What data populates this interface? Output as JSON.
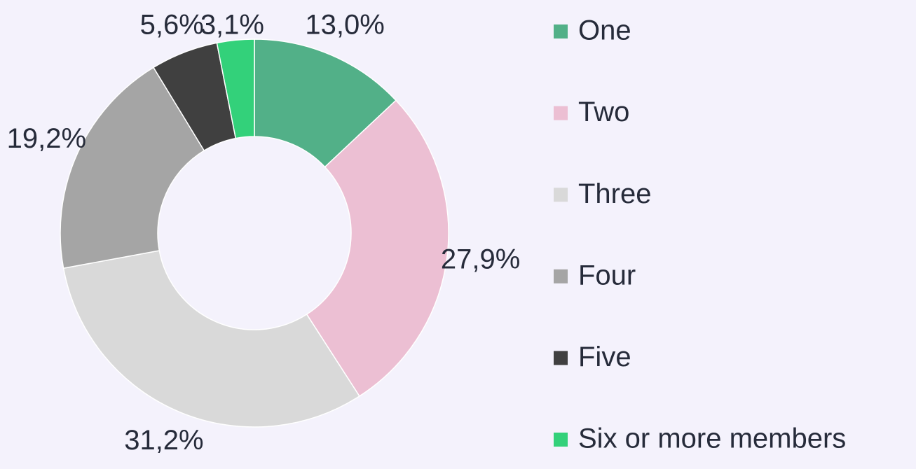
{
  "chart_data": {
    "type": "donut",
    "categories": [
      "One",
      "Two",
      "Three",
      "Four",
      "Five",
      "Six or more members"
    ],
    "values": [
      13.0,
      27.9,
      31.2,
      19.2,
      5.6,
      3.1
    ],
    "value_labels": [
      "13,0%",
      "27,9%",
      "31,2%",
      "19,2%",
      "5,6%",
      "3,1%"
    ],
    "colors": [
      "#52b088",
      "#ecbfd3",
      "#d9d9d9",
      "#a5a5a5",
      "#404040",
      "#33d17a"
    ],
    "legend": "right"
  }
}
